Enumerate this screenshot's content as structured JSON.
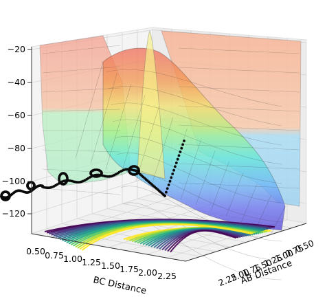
{
  "chart_data": {
    "type": "surface3d",
    "description_overlay": "surface with contour projection and trajectory",
    "xlabel": "BC Distance",
    "ylabel": "AB Distance",
    "zlabel": "",
    "x_ticks": [
      "0.50",
      "0.75",
      "1.00",
      "1.25",
      "1.50",
      "1.75",
      "2.00",
      "2.25"
    ],
    "y_ticks": [
      "0.50",
      "0.75",
      "1.00",
      "1.25",
      "1.50",
      "1.75",
      "2.00",
      "2.25"
    ],
    "z_ticks": [
      "−20",
      "−40",
      "−60",
      "−80",
      "−100",
      "−120"
    ],
    "xlim": [
      0.5,
      2.4
    ],
    "ylim": [
      0.5,
      2.4
    ],
    "zlim": [
      -135,
      -20
    ],
    "colormap_surface": "jet",
    "colormap_contour": "viridis",
    "grid": true
  }
}
